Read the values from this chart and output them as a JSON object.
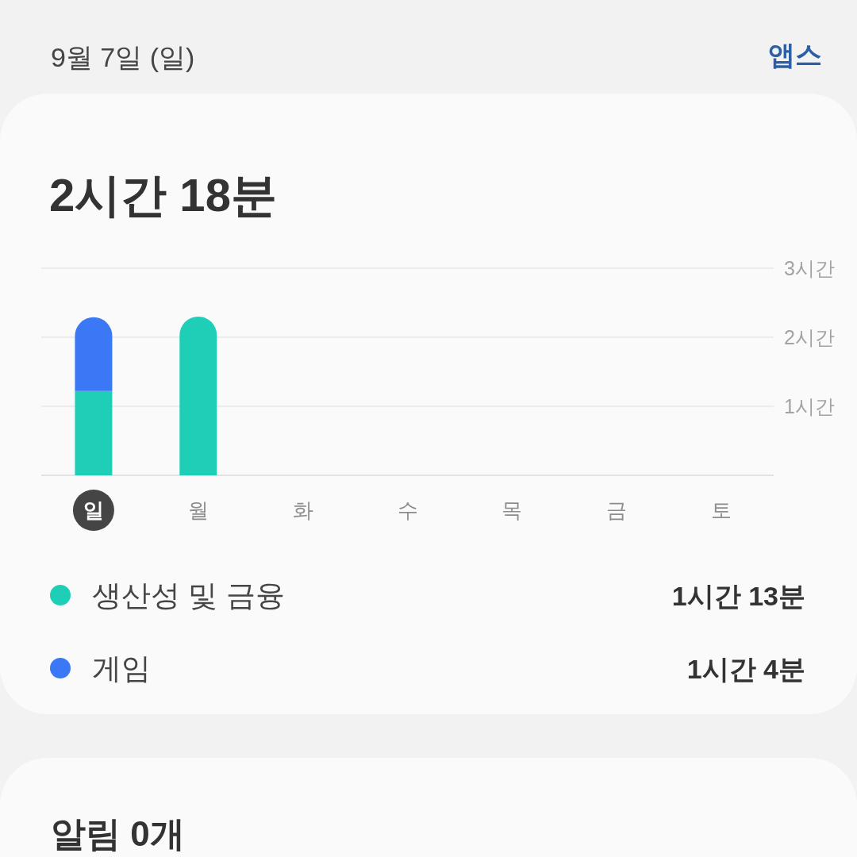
{
  "chart_data": {
    "type": "bar",
    "title": "9월 7일 (일)",
    "subtitle": "2시간 18분",
    "categories": [
      "일",
      "월",
      "화",
      "수",
      "목",
      "금",
      "토"
    ],
    "stacked": true,
    "series": [
      {
        "name": "생산성 및 금융",
        "color": "#1fceb6",
        "values": [
          1.22,
          2.3,
          null,
          null,
          null,
          null,
          null
        ]
      },
      {
        "name": "게임",
        "color": "#3a78f6",
        "values": [
          1.07,
          null,
          null,
          null,
          null,
          null,
          null
        ]
      }
    ],
    "ylim": [
      0,
      3
    ],
    "yticks": [
      {
        "value": 1,
        "label": "1시간"
      },
      {
        "value": 2,
        "label": "2시간"
      },
      {
        "value": 3,
        "label": "3시간"
      }
    ],
    "grid": "y",
    "legend": "bottom",
    "annotations": [
      "앱스",
      "1시간 13분",
      "1시간 4분",
      "알림 0개"
    ]
  }
}
